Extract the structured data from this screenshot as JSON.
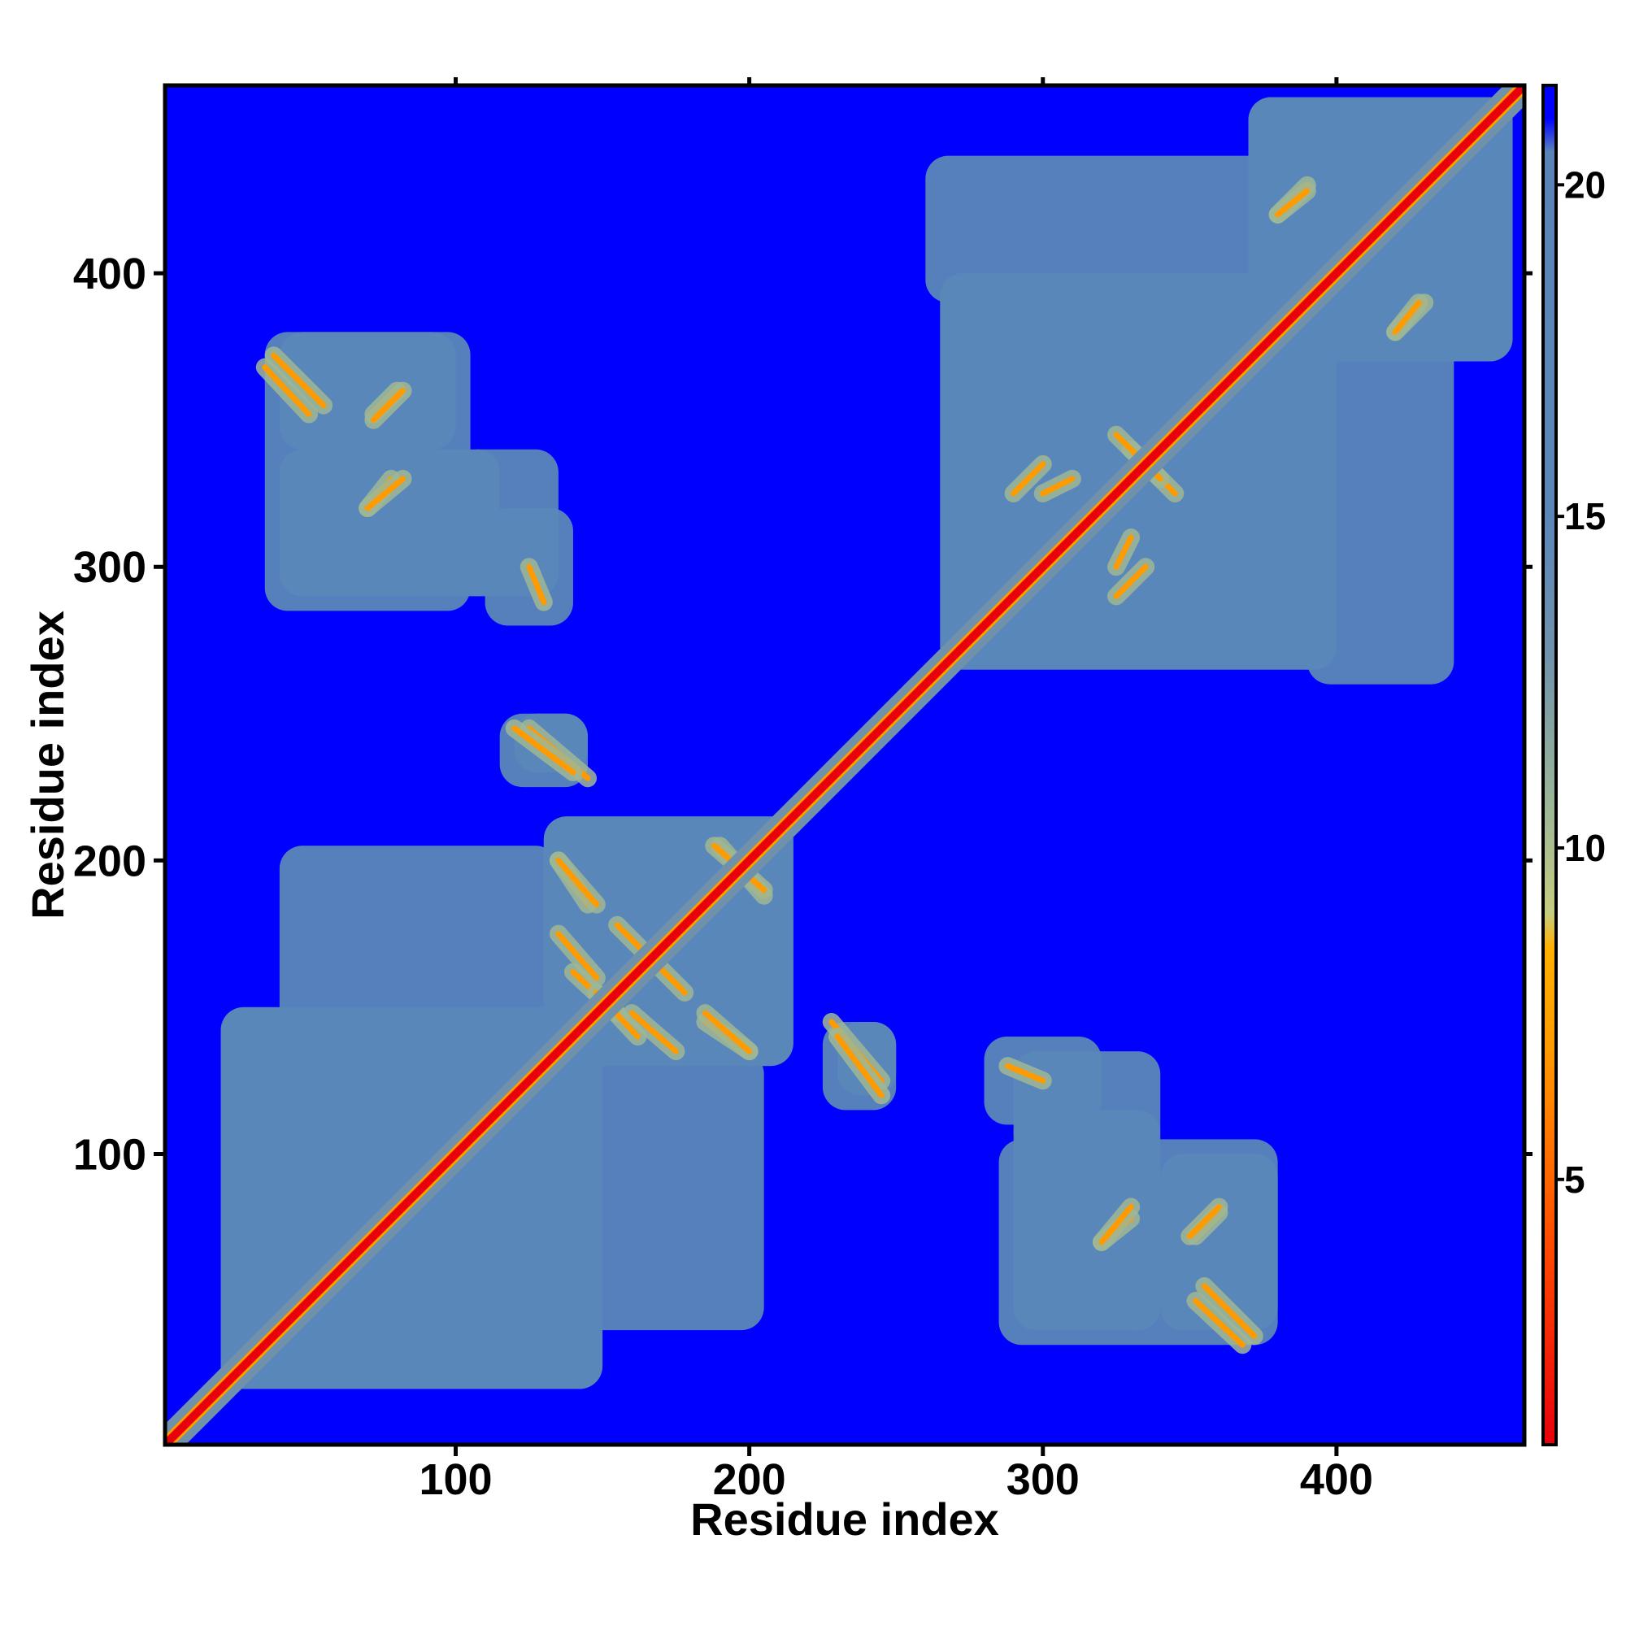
{
  "chart_data": {
    "type": "heatmap",
    "title": "",
    "xlabel": "Residue index",
    "ylabel": "Residue index",
    "xlim": [
      1,
      464
    ],
    "ylim": [
      1,
      464
    ],
    "x_ticks": [
      100,
      200,
      300,
      400
    ],
    "y_ticks": [
      100,
      200,
      300,
      400
    ],
    "colorbar": {
      "range": [
        1,
        21.5
      ],
      "ticks": [
        5,
        10,
        15,
        20
      ],
      "stops": [
        {
          "value": 1,
          "color": "#e8000b"
        },
        {
          "value": 4,
          "color": "#ff4a00"
        },
        {
          "value": 7,
          "color": "#ff9a00"
        },
        {
          "value": 8.5,
          "color": "#ffb000"
        },
        {
          "value": 9,
          "color": "#c7cd7e"
        },
        {
          "value": 10.5,
          "color": "#9fb896"
        },
        {
          "value": 13,
          "color": "#6f91ac"
        },
        {
          "value": 15,
          "color": "#5b87b8"
        },
        {
          "value": 20.5,
          "color": "#5a84b8"
        },
        {
          "value": 21,
          "color": "#0000ff"
        }
      ]
    },
    "background_value": 21.5,
    "diagonal": {
      "value": 1,
      "halfwidth": 5
    },
    "contact_regions": [
      {
        "x": [
          20,
          150
        ],
        "y": [
          20,
          150
        ]
      },
      {
        "x": [
          130,
          215
        ],
        "y": [
          130,
          215
        ]
      },
      {
        "x": [
          265,
          400
        ],
        "y": [
          265,
          400
        ]
      },
      {
        "x": [
          370,
          460
        ],
        "y": [
          370,
          460
        ]
      },
      {
        "x": [
          35,
          105
        ],
        "y": [
          285,
          380
        ]
      },
      {
        "x": [
          110,
          140
        ],
        "y": [
          280,
          320
        ]
      },
      {
        "x": [
          115,
          145
        ],
        "y": [
          225,
          250
        ]
      },
      {
        "x": [
          230,
          250
        ],
        "y": [
          120,
          145
        ]
      },
      {
        "x": [
          290,
          340
        ],
        "y": [
          40,
          115
        ]
      },
      {
        "x": [
          340,
          380
        ],
        "y": [
          40,
          100
        ]
      },
      {
        "x": [
          290,
          340
        ],
        "y": [
          100,
          135
        ]
      },
      {
        "x": [
          130,
          205
        ],
        "y": [
          40,
          135
        ]
      },
      {
        "x": [
          260,
          450
        ],
        "y": [
          390,
          440
        ]
      }
    ],
    "strands": [
      {
        "x": [
          125,
          145
        ],
        "y": [
          245,
          228
        ],
        "value": 5
      },
      {
        "x": [
          230,
          245
        ],
        "y": [
          140,
          120
        ],
        "value": 5
      },
      {
        "x": [
          38,
          55
        ],
        "y": [
          372,
          355
        ],
        "value": 6
      },
      {
        "x": [
          72,
          80
        ],
        "y": [
          352,
          360
        ],
        "value": 6
      },
      {
        "x": [
          70,
          78
        ],
        "y": [
          320,
          330
        ],
        "value": 6
      },
      {
        "x": [
          125,
          130
        ],
        "y": [
          300,
          288
        ],
        "value": 5
      },
      {
        "x": [
          135,
          145
        ],
        "y": [
          200,
          185
        ],
        "value": 6
      },
      {
        "x": [
          140,
          155
        ],
        "y": [
          162,
          148
        ],
        "value": 6
      },
      {
        "x": [
          155,
          165
        ],
        "y": [
          178,
          168
        ],
        "value": 6
      },
      {
        "x": [
          160,
          175
        ],
        "y": [
          148,
          135
        ],
        "value": 6
      },
      {
        "x": [
          190,
          205
        ],
        "y": [
          205,
          188
        ],
        "value": 6
      },
      {
        "x": [
          185,
          200
        ],
        "y": [
          148,
          135
        ],
        "value": 6
      },
      {
        "x": [
          320,
          330
        ],
        "y": [
          70,
          82
        ],
        "value": 6
      },
      {
        "x": [
          350,
          360
        ],
        "y": [
          72,
          82
        ],
        "value": 6
      },
      {
        "x": [
          352,
          368
        ],
        "y": [
          50,
          35
        ],
        "value": 6
      },
      {
        "x": [
          290,
          300
        ],
        "y": [
          325,
          335
        ],
        "value": 6
      },
      {
        "x": [
          325,
          330
        ],
        "y": [
          300,
          310
        ],
        "value": 6
      },
      {
        "x": [
          380,
          390
        ],
        "y": [
          420,
          430
        ],
        "value": 6
      },
      {
        "x": [
          420,
          428
        ],
        "y": [
          380,
          390
        ],
        "value": 6
      },
      {
        "x": [
          330,
          345
        ],
        "y": [
          340,
          325
        ],
        "value": 6
      }
    ]
  }
}
